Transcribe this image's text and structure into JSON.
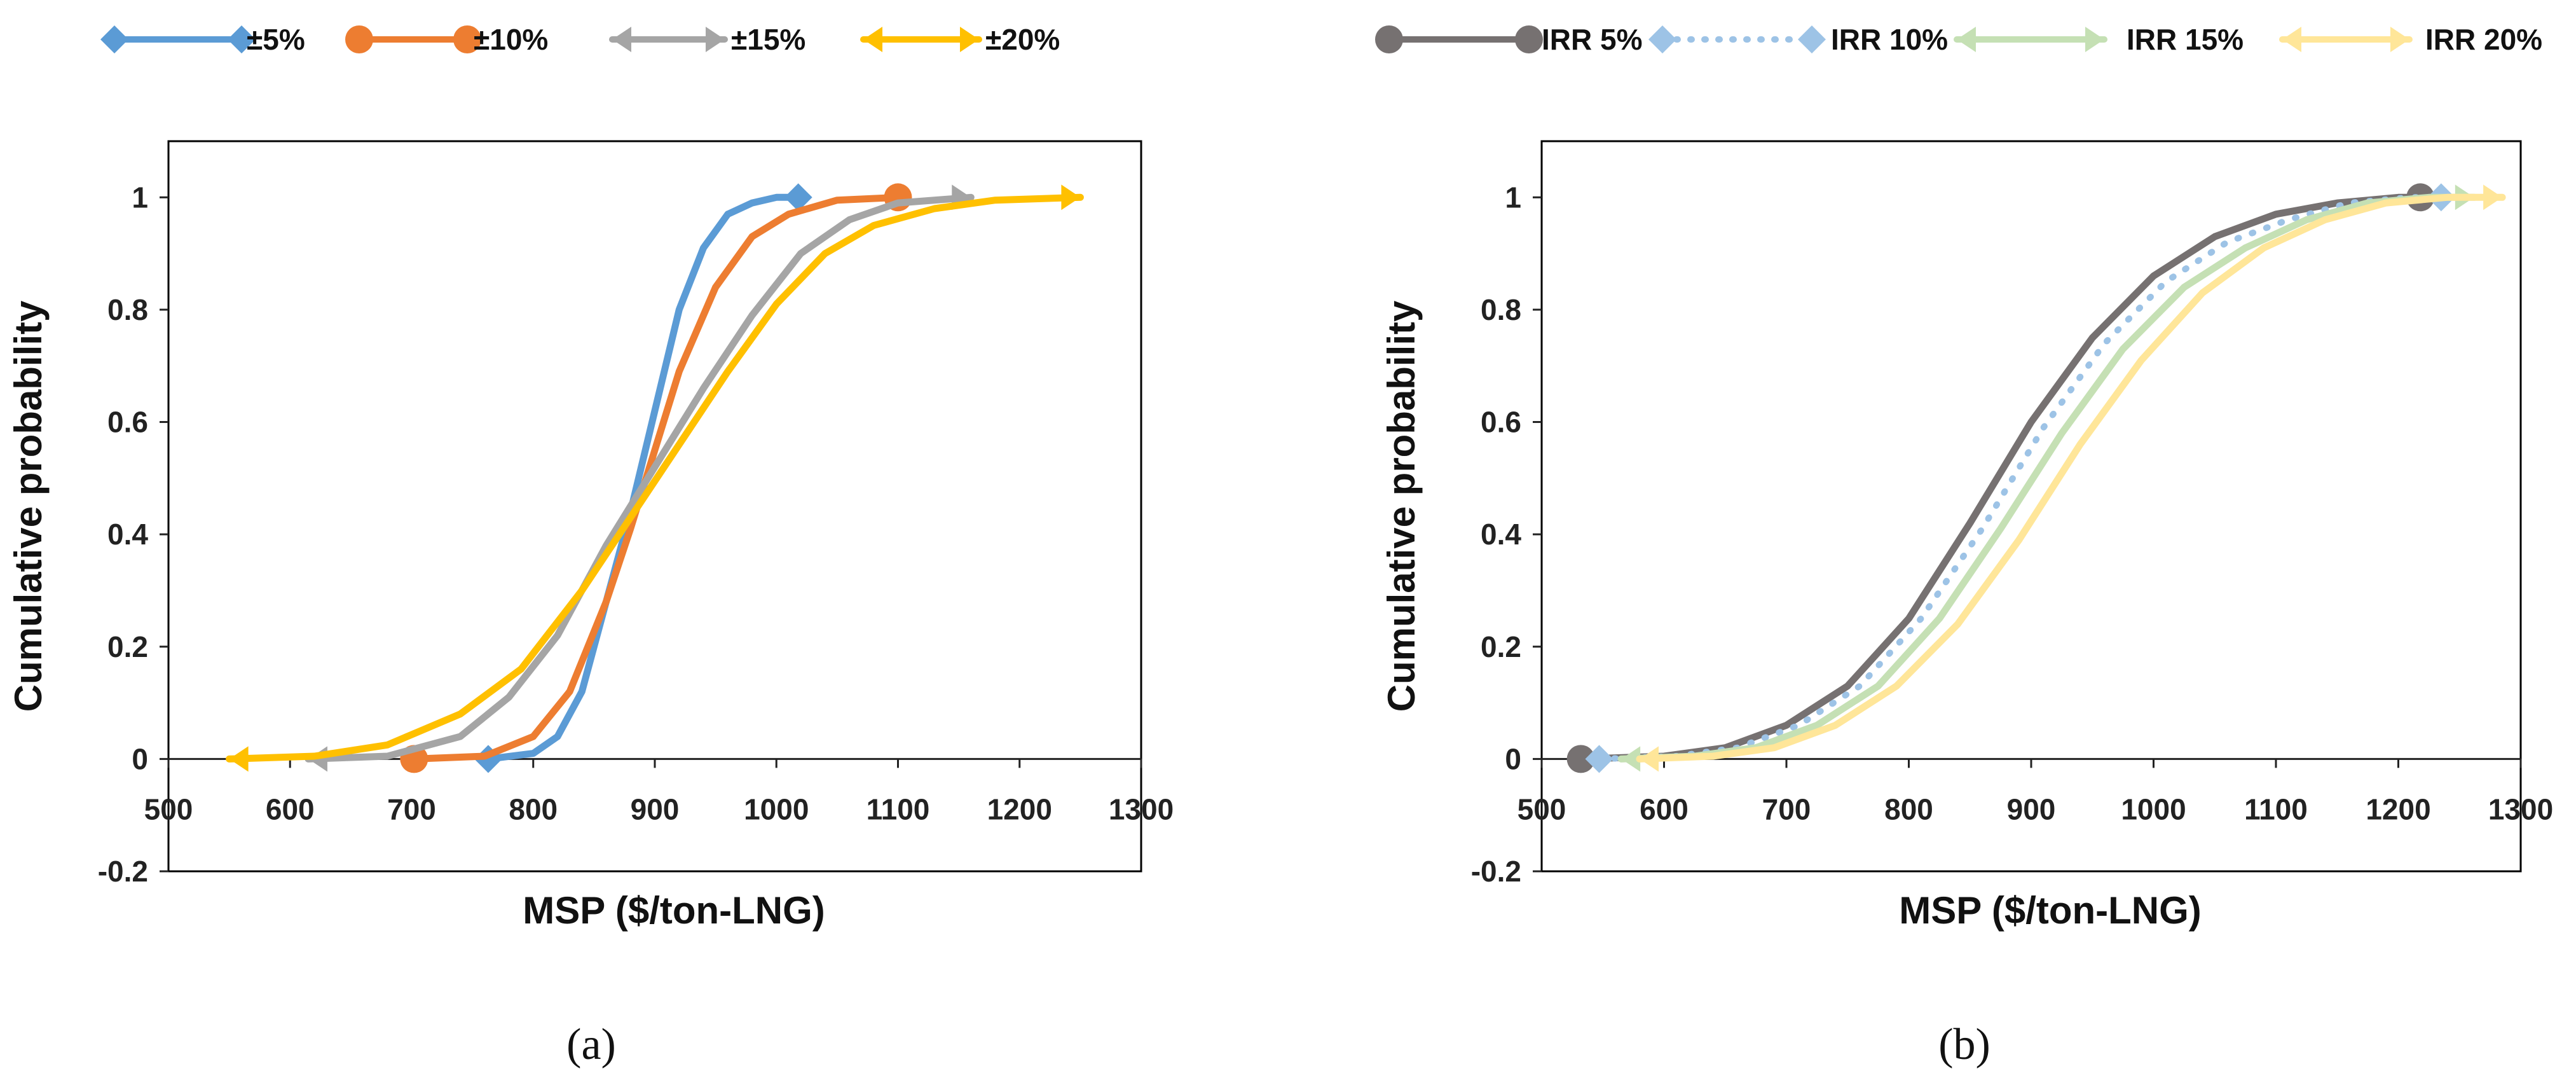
{
  "panel_labels": [
    "(a)",
    "(b)"
  ],
  "chart_data": [
    {
      "type": "line",
      "panel": "(a)",
      "title": "",
      "xlabel": "MSP ($/ton-LNG)",
      "ylabel": "Cumulative probability",
      "xlim": [
        500,
        1300
      ],
      "ylim": [
        -0.2,
        1.1
      ],
      "xticks": [
        "500",
        "600",
        "700",
        "800",
        "900",
        "1000",
        "1100",
        "1200",
        "1300"
      ],
      "yticks": [
        "-0.2",
        "0",
        "0.2",
        "0.4",
        "0.6",
        "0.8",
        "1"
      ],
      "grid": false,
      "legend_position": "top",
      "series": [
        {
          "name": "±5%",
          "color": "#5B9BD5",
          "marker": "diamond",
          "dash": false,
          "arrow": false,
          "x": [
            763,
            800,
            820,
            840,
            860,
            880,
            900,
            920,
            940,
            960,
            980,
            1000,
            1018
          ],
          "y": [
            0.0,
            0.01,
            0.04,
            0.12,
            0.28,
            0.44,
            0.62,
            0.8,
            0.91,
            0.97,
            0.99,
            1.0,
            1.0
          ]
        },
        {
          "name": "±10%",
          "color": "#ED7D31",
          "marker": "circle",
          "dash": false,
          "arrow": false,
          "x": [
            702,
            760,
            800,
            830,
            860,
            880,
            900,
            920,
            950,
            980,
            1010,
            1050,
            1100
          ],
          "y": [
            0.0,
            0.005,
            0.04,
            0.12,
            0.28,
            0.41,
            0.55,
            0.69,
            0.84,
            0.93,
            0.97,
            0.995,
            1.0
          ]
        },
        {
          "name": "±15%",
          "color": "#A5A5A5",
          "marker": "arrow",
          "dash": false,
          "arrow": true,
          "x": [
            615,
            680,
            740,
            780,
            820,
            860,
            900,
            940,
            980,
            1020,
            1060,
            1100,
            1160
          ],
          "y": [
            0.0,
            0.005,
            0.04,
            0.11,
            0.22,
            0.38,
            0.52,
            0.66,
            0.79,
            0.9,
            0.96,
            0.99,
            1.0
          ]
        },
        {
          "name": "±20%",
          "color": "#FFC000",
          "marker": "arrow",
          "dash": false,
          "arrow": true,
          "x": [
            550,
            620,
            680,
            740,
            790,
            840,
            880,
            920,
            960,
            1000,
            1040,
            1080,
            1130,
            1180,
            1250
          ],
          "y": [
            0.0,
            0.005,
            0.025,
            0.08,
            0.16,
            0.3,
            0.43,
            0.56,
            0.69,
            0.81,
            0.9,
            0.95,
            0.98,
            0.995,
            1.0
          ]
        }
      ]
    },
    {
      "type": "line",
      "panel": "(b)",
      "title": "",
      "xlabel": "MSP ($/ton-LNG)",
      "ylabel": "Cumulative probability",
      "xlim": [
        500,
        1300
      ],
      "ylim": [
        -0.2,
        1.1
      ],
      "xticks": [
        "500",
        "600",
        "700",
        "800",
        "900",
        "1000",
        "1100",
        "1200",
        "1300"
      ],
      "yticks": [
        "-0.2",
        "0",
        "0.2",
        "0.4",
        "0.6",
        "0.8",
        "1"
      ],
      "grid": false,
      "legend_position": "top",
      "series": [
        {
          "name": "IRR 5%",
          "color": "#767171",
          "marker": "circle",
          "dash": false,
          "arrow": false,
          "x": [
            532,
            600,
            650,
            700,
            750,
            800,
            850,
            900,
            950,
            1000,
            1050,
            1100,
            1150,
            1200,
            1218
          ],
          "y": [
            0.0,
            0.005,
            0.02,
            0.06,
            0.13,
            0.25,
            0.42,
            0.6,
            0.75,
            0.86,
            0.93,
            0.97,
            0.99,
            1.0,
            1.0
          ]
        },
        {
          "name": "IRR 10%",
          "color": "#9DC3E6",
          "marker": "diamond",
          "dash": true,
          "arrow": false,
          "x": [
            547,
            610,
            660,
            710,
            760,
            810,
            860,
            910,
            960,
            1010,
            1060,
            1110,
            1160,
            1210,
            1235
          ],
          "y": [
            0.0,
            0.005,
            0.02,
            0.06,
            0.13,
            0.25,
            0.41,
            0.59,
            0.74,
            0.85,
            0.92,
            0.96,
            0.99,
            1.0,
            1.0
          ]
        },
        {
          "name": "IRR 15%",
          "color": "#C5E0B4",
          "marker": "arrow",
          "dash": false,
          "arrow": true,
          "x": [
            565,
            625,
            675,
            725,
            775,
            825,
            875,
            925,
            975,
            1025,
            1075,
            1125,
            1175,
            1225,
            1262
          ],
          "y": [
            0.0,
            0.005,
            0.02,
            0.06,
            0.13,
            0.25,
            0.41,
            0.58,
            0.73,
            0.84,
            0.91,
            0.96,
            0.99,
            1.0,
            1.0
          ]
        },
        {
          "name": "IRR 20%",
          "color": "#FFE699",
          "marker": "arrow",
          "dash": false,
          "arrow": true,
          "x": [
            580,
            640,
            690,
            740,
            790,
            840,
            890,
            940,
            990,
            1040,
            1090,
            1140,
            1190,
            1240,
            1285
          ],
          "y": [
            0.0,
            0.005,
            0.02,
            0.06,
            0.13,
            0.24,
            0.39,
            0.56,
            0.71,
            0.83,
            0.91,
            0.96,
            0.99,
            1.0,
            1.0
          ]
        }
      ]
    }
  ]
}
